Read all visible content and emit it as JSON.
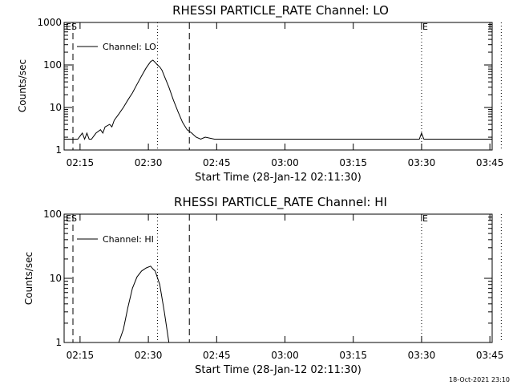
{
  "chart_data": [
    {
      "type": "line",
      "title": "RHESSI PARTICLE_RATE Channel: LO",
      "xlabel": "Start Time (28-Jan-12 02:11:30)",
      "ylabel": "Counts/sec",
      "yscale": "log",
      "ylim": [
        1,
        1000
      ],
      "xlim_min_after_start": [
        0,
        94
      ],
      "x_ticks": [
        {
          "t": 3.5,
          "label": "02:15"
        },
        {
          "t": 18.5,
          "label": "02:30"
        },
        {
          "t": 33.5,
          "label": "02:45"
        },
        {
          "t": 48.5,
          "label": "03:00"
        },
        {
          "t": 63.5,
          "label": "03:15"
        },
        {
          "t": 78.5,
          "label": "03:30"
        },
        {
          "t": 93.5,
          "label": "03:45"
        }
      ],
      "y_ticks": [
        {
          "v": 1,
          "label": "1"
        },
        {
          "v": 10,
          "label": "10"
        },
        {
          "v": 100,
          "label": "100"
        },
        {
          "v": 1000,
          "label": "1000"
        }
      ],
      "legend": "Channel: LO",
      "markers": [
        {
          "t": 0,
          "label": "ES",
          "style": "dashed"
        },
        {
          "t": 27.5,
          "label": "",
          "style": "dashed"
        },
        {
          "t": 20.5,
          "label": "",
          "style": "dotted"
        },
        {
          "t": 78.5,
          "label": "E",
          "style": "dotted"
        },
        {
          "t": 96,
          "label": "",
          "style": "dotted"
        }
      ],
      "series": [
        {
          "name": "Channel: LO",
          "x": [
            -1.5,
            0,
            1,
            2,
            3,
            4,
            4.5,
            5,
            5.5,
            6,
            7,
            8,
            8.5,
            9,
            10,
            10.5,
            11,
            12,
            13,
            14,
            15,
            16,
            17,
            18,
            19,
            19.5,
            20,
            20.5,
            21,
            21.5,
            22,
            23,
            24,
            25,
            26,
            27,
            28,
            29,
            30,
            31,
            33,
            35,
            37,
            40,
            45,
            50,
            55,
            60,
            65,
            70,
            75,
            78,
            78.5,
            79,
            82,
            86,
            90,
            94
          ],
          "y": [
            1.8,
            1.8,
            1.8,
            1.8,
            1.8,
            2.5,
            1.8,
            2.5,
            1.8,
            1.8,
            2.5,
            3,
            2.5,
            3.5,
            4,
            3.5,
            5,
            7,
            10,
            15,
            22,
            35,
            55,
            85,
            120,
            130,
            115,
            100,
            90,
            75,
            55,
            30,
            15,
            8,
            4.5,
            3,
            2.5,
            2,
            1.8,
            2,
            1.8,
            1.8,
            1.8,
            1.8,
            1.8,
            1.8,
            1.8,
            1.8,
            1.8,
            1.8,
            1.8,
            1.8,
            2.5,
            1.8,
            1.8,
            1.8,
            1.8,
            1.8
          ]
        }
      ]
    },
    {
      "type": "line",
      "title": "RHESSI PARTICLE_RATE Channel: HI",
      "xlabel": "Start Time (28-Jan-12 02:11:30)",
      "ylabel": "Counts/sec",
      "yscale": "log",
      "ylim": [
        1,
        100
      ],
      "xlim_min_after_start": [
        0,
        94
      ],
      "x_ticks": [
        {
          "t": 3.5,
          "label": "02:15"
        },
        {
          "t": 18.5,
          "label": "02:30"
        },
        {
          "t": 33.5,
          "label": "02:45"
        },
        {
          "t": 48.5,
          "label": "03:00"
        },
        {
          "t": 63.5,
          "label": "03:15"
        },
        {
          "t": 78.5,
          "label": "03:30"
        },
        {
          "t": 93.5,
          "label": "03:45"
        }
      ],
      "y_ticks": [
        {
          "v": 1,
          "label": "1"
        },
        {
          "v": 10,
          "label": "10"
        },
        {
          "v": 100,
          "label": "100"
        }
      ],
      "legend": "Channel: HI",
      "markers": [
        {
          "t": 0,
          "label": "ES",
          "style": "dashed"
        },
        {
          "t": 27.5,
          "label": "",
          "style": "dashed"
        },
        {
          "t": 20.5,
          "label": "",
          "style": "dotted"
        },
        {
          "t": 78.5,
          "label": "E",
          "style": "dotted"
        },
        {
          "t": 96,
          "label": "",
          "style": "dotted"
        }
      ],
      "series": [
        {
          "name": "Channel: HI",
          "x": [
            12,
            13,
            14,
            15,
            16,
            17,
            18,
            19,
            19.5,
            20,
            21,
            22,
            23
          ],
          "y": [
            1,
            1.6,
            3.5,
            7,
            10.5,
            13,
            14.5,
            15.5,
            14,
            13,
            8,
            3,
            1
          ]
        }
      ]
    }
  ],
  "footer": {
    "timestamp": "18-Oct-2021 23:10"
  }
}
